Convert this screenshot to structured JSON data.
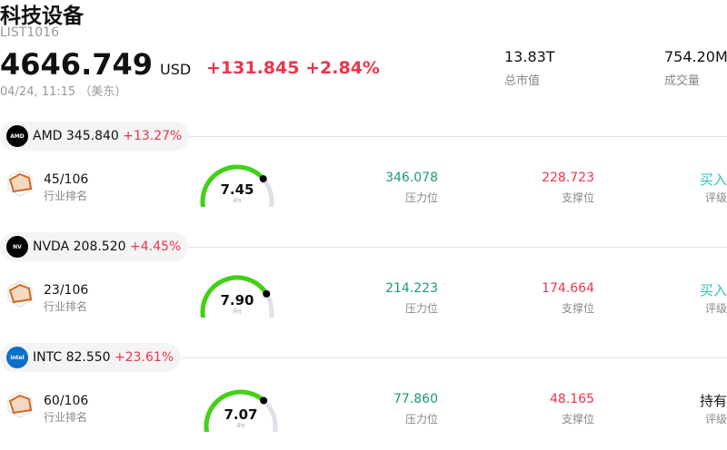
{
  "header": {
    "title": "科技设备",
    "code": "LIST1016",
    "price": "4646.749",
    "currency": "USD",
    "change": "+131.845",
    "change_pct": "+2.84%",
    "time": "04/24, 11:15 （美东）",
    "stats": [
      {
        "value": "13.83T",
        "label": "总市值"
      },
      {
        "value": "754.20M",
        "label": "成交量"
      }
    ]
  },
  "colors": {
    "up": "#f0334b",
    "resistance": "#1a9a7a",
    "buy": "#2ec4b6",
    "gauge": "#44d017",
    "gauge_bg": "#e0e0ea"
  },
  "stocks": [
    {
      "ticker": "AMD",
      "price": "345.840",
      "change_pct": "+13.27%",
      "logo_text": "AMD",
      "logo_color": "#000000",
      "rank": "45/106",
      "rank_label": "行业排名",
      "score": "7.45",
      "score_value": 7.45,
      "score_label": "评分",
      "resistance": "346.078",
      "resistance_label": "压力位",
      "support": "228.723",
      "support_label": "支撑位",
      "rating": "买入",
      "rating_label": "评级",
      "rating_color": "#2ec4b6"
    },
    {
      "ticker": "NVDA",
      "price": "208.520",
      "change_pct": "+4.45%",
      "logo_text": "NV",
      "logo_color": "#000000",
      "rank": "23/106",
      "rank_label": "行业排名",
      "score": "7.90",
      "score_value": 7.9,
      "score_label": "评分",
      "resistance": "214.223",
      "resistance_label": "压力位",
      "support": "174.664",
      "support_label": "支撑位",
      "rating": "买入",
      "rating_label": "评级",
      "rating_color": "#2ec4b6"
    },
    {
      "ticker": "INTC",
      "price": "82.550",
      "change_pct": "+23.61%",
      "logo_text": "intel",
      "logo_color": "#0b6fc6",
      "rank": "60/106",
      "rank_label": "行业排名",
      "score": "7.07",
      "score_value": 7.07,
      "score_label": "评分",
      "resistance": "77.860",
      "resistance_label": "压力位",
      "support": "48.165",
      "support_label": "支撑位",
      "rating": "持有",
      "rating_label": "评级",
      "rating_color": "#111111"
    }
  ]
}
